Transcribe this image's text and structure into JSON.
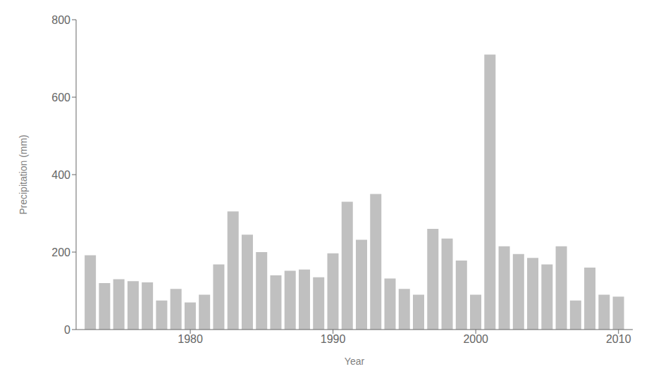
{
  "chart_data": {
    "type": "bar",
    "x": [
      1973,
      1974,
      1975,
      1976,
      1977,
      1978,
      1979,
      1980,
      1981,
      1982,
      1983,
      1984,
      1985,
      1986,
      1987,
      1988,
      1989,
      1990,
      1991,
      1992,
      1993,
      1994,
      1995,
      1996,
      1997,
      1998,
      1999,
      2000,
      2001,
      2002,
      2003,
      2004,
      2005,
      2006,
      2007,
      2008,
      2009,
      2010
    ],
    "values": [
      192,
      120,
      130,
      125,
      122,
      75,
      105,
      70,
      90,
      168,
      305,
      245,
      200,
      140,
      152,
      155,
      135,
      197,
      330,
      232,
      350,
      132,
      105,
      90,
      260,
      235,
      178,
      90,
      710,
      215,
      195,
      185,
      168,
      215,
      75,
      160,
      90,
      85
    ],
    "color": "#c0c0c0",
    "xlabel": "Year",
    "ylabel": "Precipitation (mm)",
    "xlim": [
      1972,
      2011
    ],
    "xticks": [
      1980,
      1990,
      2000,
      2010
    ],
    "ylim": [
      0,
      800
    ],
    "yticks": [
      0,
      200,
      400,
      600,
      800
    ],
    "grid": false
  }
}
